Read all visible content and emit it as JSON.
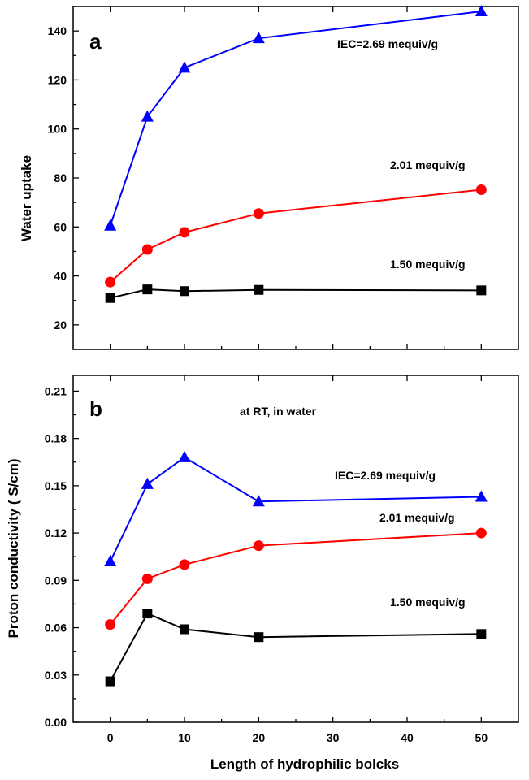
{
  "chart_data": [
    {
      "type": "line",
      "panel_label": "a",
      "ylabel": "Water uptake",
      "xlabel": "",
      "xlim": [
        -5,
        55
      ],
      "ylim": [
        10,
        150
      ],
      "x_tick_labels": [],
      "y_ticks": [
        20,
        40,
        60,
        80,
        100,
        120,
        140
      ],
      "y_tick_labels": [
        "20",
        "40",
        "60",
        "80",
        "100",
        "120",
        "140"
      ],
      "annotations": [
        "IEC=2.69 mequiv/g",
        "2.01 mequiv/g",
        "1.50 mequiv/g"
      ],
      "x": [
        0,
        5,
        10,
        20,
        50
      ],
      "series": [
        {
          "label": "IEC=2.69 mequiv/g",
          "color": "#0000ff",
          "marker": "triangle",
          "values": [
            60.5,
            105,
            125,
            137,
            148
          ]
        },
        {
          "label": "2.01 mequiv/g",
          "color": "#ff0000",
          "marker": "circle",
          "values": [
            37.5,
            50.8,
            57.8,
            65.5,
            75.2
          ]
        },
        {
          "label": "1.50 mequiv/g",
          "color": "#000000",
          "marker": "square",
          "values": [
            31,
            34.5,
            33.8,
            34.3,
            34.1
          ]
        }
      ]
    },
    {
      "type": "line",
      "panel_label": "b",
      "ylabel": "Proton conductivity ( S/cm)",
      "xlabel": "Length of hydrophilic bolcks",
      "xlim": [
        -5,
        55
      ],
      "ylim": [
        0,
        0.22
      ],
      "x_ticks": [
        0,
        10,
        20,
        30,
        40,
        50
      ],
      "x_tick_labels": [
        "0",
        "10",
        "20",
        "30",
        "40",
        "50"
      ],
      "y_ticks": [
        0,
        0.03,
        0.06,
        0.09,
        0.12,
        0.15,
        0.18,
        0.21
      ],
      "y_tick_labels": [
        "0.00",
        "0.03",
        "0.06",
        "0.09",
        "0.12",
        "0.15",
        "0.18",
        "0.21"
      ],
      "annotations": [
        "at RT, in water",
        "IEC=2.69 mequiv/g",
        "2.01 mequiv/g",
        "1.50 mequiv/g"
      ],
      "x": [
        0,
        5,
        10,
        20,
        50
      ],
      "series": [
        {
          "label": "IEC=2.69 mequiv/g",
          "color": "#0000ff",
          "marker": "triangle",
          "values": [
            0.102,
            0.151,
            0.168,
            0.14,
            0.143
          ]
        },
        {
          "label": "2.01 mequiv/g",
          "color": "#ff0000",
          "marker": "circle",
          "values": [
            0.062,
            0.091,
            0.1,
            0.112,
            0.12
          ]
        },
        {
          "label": "1.50 mequiv/g",
          "color": "#000000",
          "marker": "square",
          "values": [
            0.026,
            0.069,
            0.059,
            0.054,
            0.056
          ]
        }
      ]
    }
  ]
}
